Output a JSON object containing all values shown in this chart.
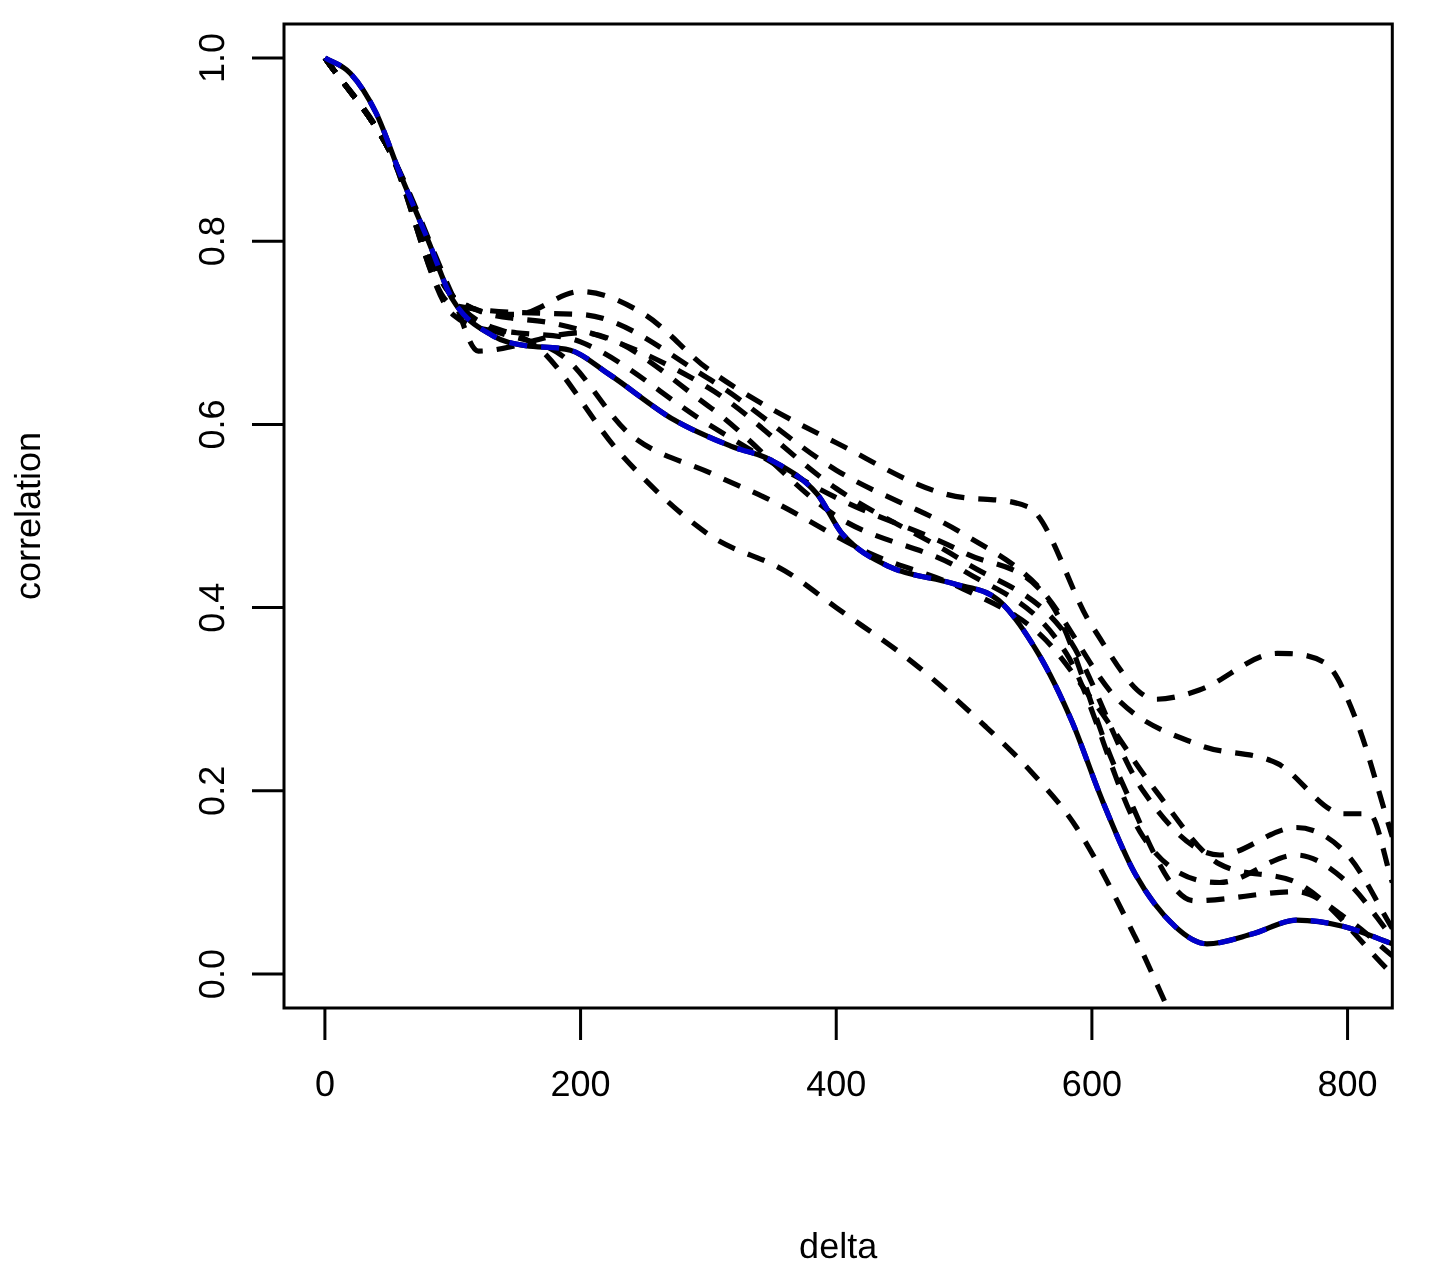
{
  "chart_data": {
    "type": "line",
    "xlabel": "delta",
    "ylabel": "correlation",
    "xlim": [
      -32,
      835
    ],
    "ylim": [
      -0.037,
      1.037
    ],
    "xticks": [
      0,
      200,
      400,
      600,
      800
    ],
    "yticks": [
      {
        "value": 0,
        "label": "0.0"
      },
      {
        "value": 0.2,
        "label": "0.2"
      },
      {
        "value": 0.4,
        "label": "0.4"
      },
      {
        "value": 0.6,
        "label": "0.6"
      },
      {
        "value": 0.8,
        "label": "0.8"
      },
      {
        "value": 1,
        "label": "1.0"
      }
    ],
    "grid": false,
    "legend": false,
    "series": [
      {
        "color": "#000000",
        "line_style": "dashed",
        "x": [
          0,
          50,
          100,
          150,
          200,
          250,
          300,
          400,
          500,
          550,
          600,
          650,
          684,
          745,
          782,
          806,
          835
        ],
        "values": [
          1,
          0.9,
          0.74,
          0.72,
          0.745,
          0.72,
          0.66,
          0.58,
          0.52,
          0.51,
          0.38,
          0.3,
          0.31,
          0.35,
          0.34,
          0.28,
          0.15
        ]
      },
      {
        "color": "#000000",
        "line_style": "dashed",
        "x": [
          0,
          50,
          100,
          200,
          300,
          400,
          500,
          560,
          620,
          684,
          745,
          797,
          817,
          835
        ],
        "values": [
          1,
          0.9,
          0.73,
          0.72,
          0.65,
          0.55,
          0.48,
          0.42,
          0.3,
          0.25,
          0.23,
          0.175,
          0.175,
          0.1
        ]
      },
      {
        "color": "#000000",
        "line_style": "dashed",
        "x": [
          0,
          50,
          100,
          180,
          300,
          400,
          500,
          580,
          640,
          700,
          760,
          800,
          835
        ],
        "values": [
          1,
          0.9,
          0.74,
          0.71,
          0.64,
          0.53,
          0.45,
          0.37,
          0.2,
          0.13,
          0.16,
          0.13,
          0.05
        ]
      },
      {
        "color": "#000000",
        "line_style": "dashed",
        "x": [
          0,
          50,
          100,
          120,
          200,
          300,
          400,
          500,
          580,
          640,
          700,
          760,
          800,
          835
        ],
        "values": [
          1,
          0.9,
          0.74,
          0.68,
          0.7,
          0.62,
          0.5,
          0.44,
          0.35,
          0.15,
          0.1,
          0.13,
          0.1,
          0.04
        ]
      },
      {
        "color": "#000000",
        "line_style": "dashed",
        "x": [
          0,
          50,
          100,
          170,
          230,
          300,
          360,
          400,
          460,
          517,
          553,
          588,
          634,
          657
        ],
        "values": [
          1,
          0.9,
          0.74,
          0.68,
          0.57,
          0.48,
          0.44,
          0.4,
          0.34,
          0.27,
          0.22,
          0.16,
          0.04,
          -0.03
        ]
      },
      {
        "color": "#000000",
        "line_style": "dashed",
        "x": [
          0,
          50,
          100,
          190,
          238,
          303,
          349,
          425,
          500,
          560,
          600,
          650,
          700,
          760,
          835
        ],
        "values": [
          1,
          0.9,
          0.74,
          0.67,
          0.59,
          0.546,
          0.517,
          0.46,
          0.42,
          0.37,
          0.3,
          0.2,
          0.12,
          0.1,
          0
        ]
      },
      {
        "color": "#000000",
        "line_style": "dashed",
        "x": [
          0,
          50,
          100,
          150,
          200,
          300,
          400,
          500,
          570,
          620,
          680,
          760,
          800,
          835
        ],
        "values": [
          1,
          0.9,
          0.72,
          0.7,
          0.69,
          0.6,
          0.52,
          0.46,
          0.4,
          0.22,
          0.08,
          0.09,
          0.06,
          0.02
        ]
      },
      {
        "color": "#000000",
        "line_style": "solid",
        "x": [
          0,
          20,
          40,
          59,
          81,
          100,
          131,
          157,
          192,
          222,
          273,
          318,
          349,
          385,
          405,
          441,
          492,
          527,
          558,
          584,
          608,
          634,
          665,
          690,
          726,
          760,
          797,
          835
        ],
        "values": [
          1,
          0.983,
          0.94,
          0.873,
          0.8,
          0.736,
          0.697,
          0.686,
          0.681,
          0.655,
          0.605,
          0.576,
          0.561,
          0.524,
          0.48,
          0.445,
          0.426,
          0.408,
          0.35,
          0.277,
          0.19,
          0.109,
          0.052,
          0.033,
          0.044,
          0.059,
          0.052,
          0.033
        ]
      },
      {
        "color": "#0000cc",
        "line_style": "dashed",
        "x": [
          0,
          20,
          40,
          59,
          81,
          100,
          131,
          157,
          192,
          222,
          273,
          318,
          349,
          385,
          405,
          441,
          492,
          527,
          558,
          584,
          608,
          634,
          665,
          690,
          726,
          760,
          797,
          835
        ],
        "values": [
          1,
          0.983,
          0.94,
          0.873,
          0.8,
          0.736,
          0.697,
          0.686,
          0.681,
          0.655,
          0.605,
          0.576,
          0.561,
          0.524,
          0.48,
          0.445,
          0.426,
          0.408,
          0.35,
          0.277,
          0.19,
          0.109,
          0.052,
          0.033,
          0.044,
          0.059,
          0.052,
          0.033
        ]
      }
    ]
  }
}
